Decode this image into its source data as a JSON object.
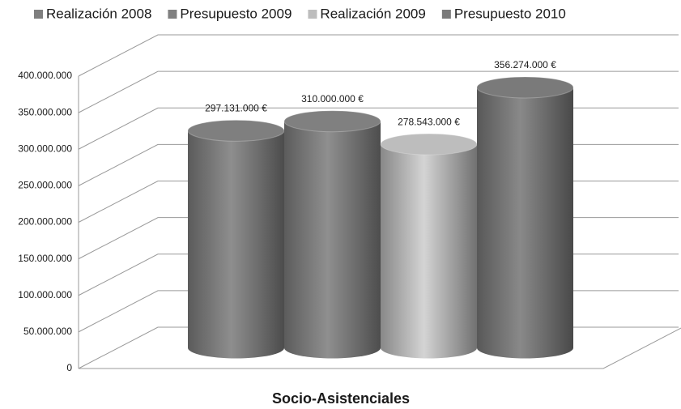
{
  "chart_data": {
    "type": "bar3d",
    "categories": [
      "Socio-Asistenciales"
    ],
    "series": [
      {
        "name": "Realización 2008",
        "color": "#7f7f7f",
        "values": [
          297131000
        ],
        "value_labels": [
          "297.131.000 €"
        ]
      },
      {
        "name": "Presupuesto 2009",
        "color": "#808080",
        "values": [
          310000000
        ],
        "value_labels": [
          "310.000.000 €"
        ]
      },
      {
        "name": "Realización 2009",
        "color": "#bdbdbd",
        "values": [
          278543000
        ],
        "value_labels": [
          "278.543.000 €"
        ]
      },
      {
        "name": "Presupuesto 2010",
        "color": "#7a7a7a",
        "values": [
          356274000
        ],
        "value_labels": [
          "356.274.000 €"
        ]
      }
    ],
    "ylim": [
      0,
      400000000
    ],
    "yticks": [
      0,
      {
        "value": 50000000,
        "label": "50.000.000"
      },
      {
        "value": 100000000,
        "label": "100.000.000"
      },
      {
        "value": 150000000,
        "label": "150.000.000"
      },
      {
        "value": 200000000,
        "label": "200.000.000"
      },
      {
        "value": 250000000,
        "label": "250.000.000"
      },
      {
        "value": 300000000,
        "label": "300.000.000"
      },
      {
        "value": 350000000,
        "label": "350.000.000"
      },
      {
        "value": 400000000,
        "label": "400.000.000"
      }
    ],
    "grid": true,
    "legend": "top"
  }
}
